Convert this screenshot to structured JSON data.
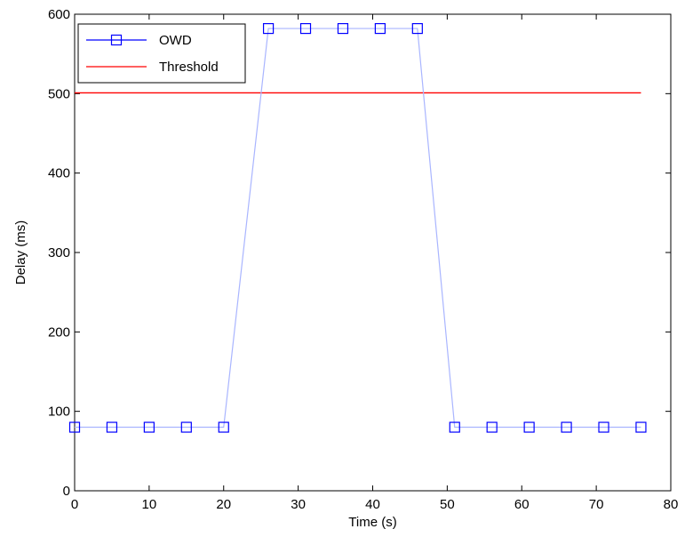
{
  "chart_data": {
    "type": "line",
    "title": "",
    "xlabel": "Time (s)",
    "ylabel": "Delay (ms)",
    "xlim": [
      0,
      80
    ],
    "ylim": [
      0,
      600
    ],
    "xticks": [
      0,
      10,
      20,
      30,
      40,
      50,
      60,
      70,
      80
    ],
    "yticks": [
      0,
      100,
      200,
      300,
      400,
      500,
      600
    ],
    "grid": false,
    "legend_position": "top-left",
    "series": [
      {
        "name": "OWD",
        "marker": "square",
        "color": "#0000ff",
        "line_color": "#a9b5ff",
        "x": [
          0,
          5,
          10,
          15,
          20,
          26,
          31,
          36,
          41,
          46,
          51,
          56,
          61,
          66,
          71,
          76
        ],
        "values": [
          80,
          80,
          80,
          80,
          80,
          582,
          582,
          582,
          582,
          582,
          80,
          80,
          80,
          80,
          80,
          80
        ]
      },
      {
        "name": "Threshold",
        "color": "#ff0000",
        "x": [
          0,
          76
        ],
        "values": [
          501,
          501
        ]
      }
    ]
  }
}
